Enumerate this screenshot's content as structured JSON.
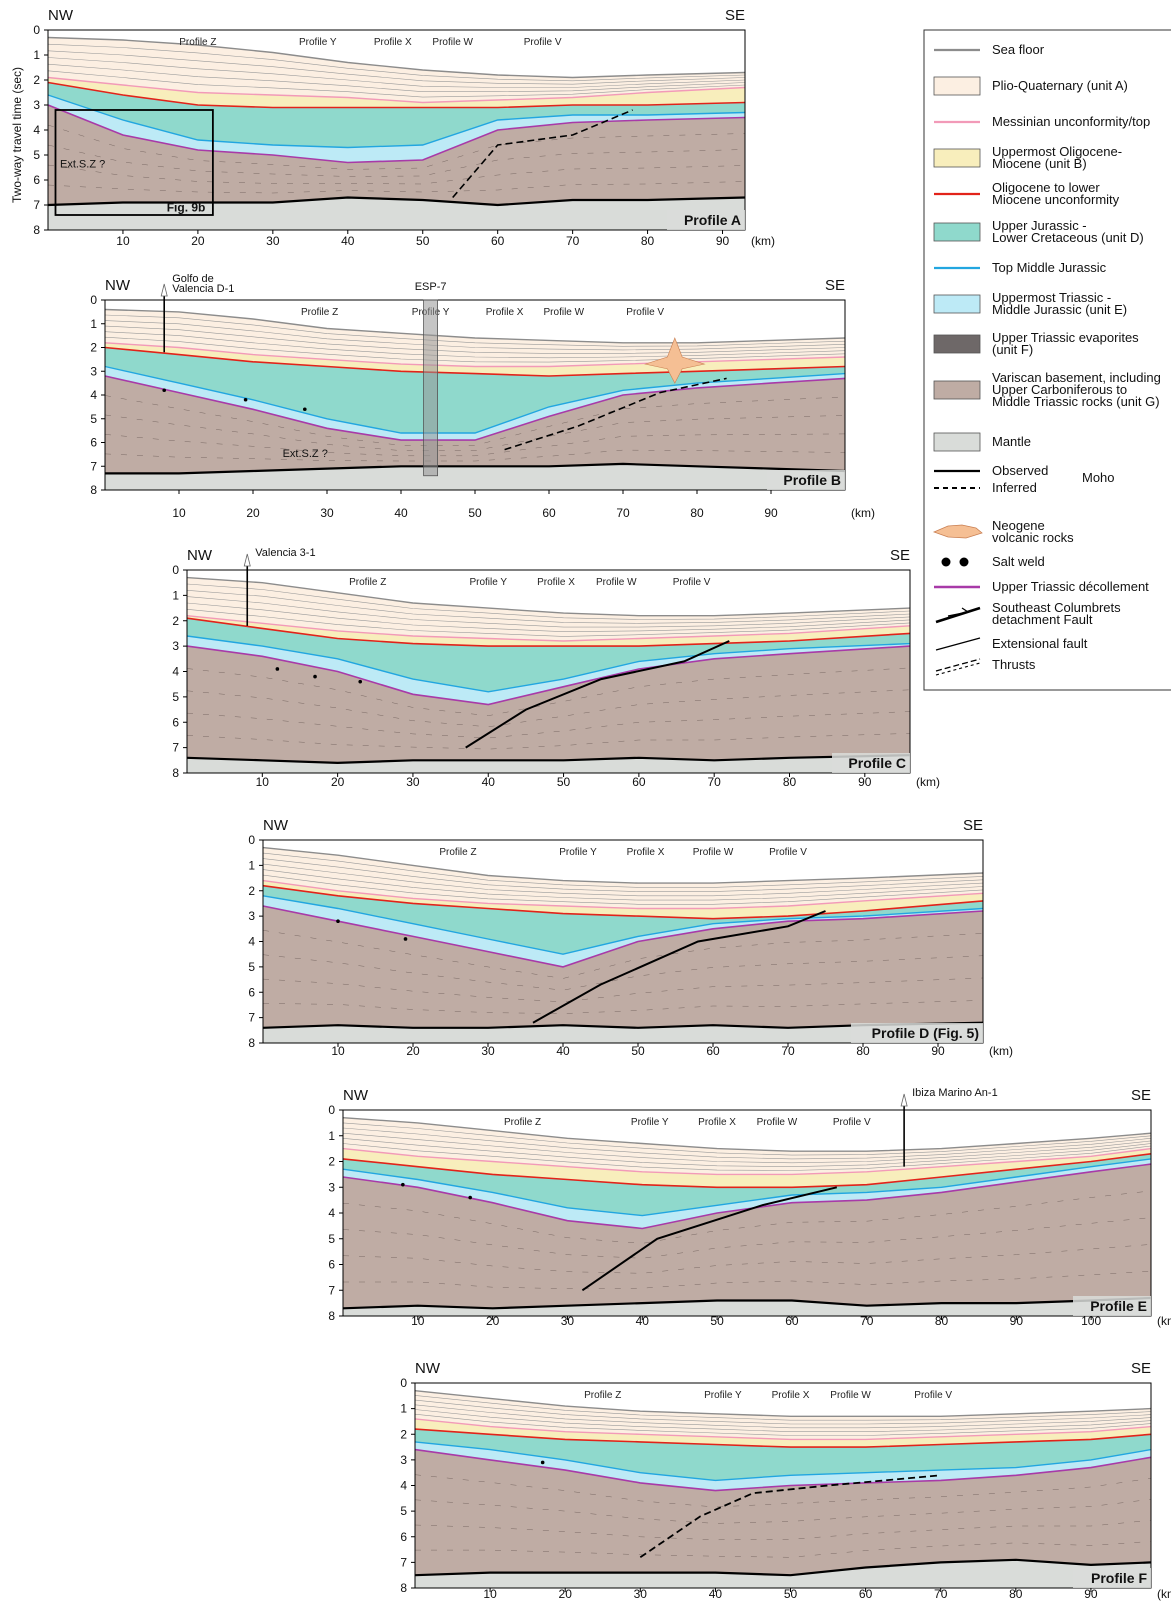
{
  "y_axis_label": "Two-way travel time (sec)",
  "colors": {
    "sea_floor": "#8c8c8c",
    "unit_A": "#fcefe2",
    "unit_B": "#f8eebc",
    "unit_D": "#8fd9cc",
    "unit_E": "#bdeaf6",
    "unit_F": "#6e6868",
    "unit_G": "#bfaca4",
    "mantle": "#d9dcd9",
    "messinian": "#f29ab8",
    "oligocene_unconf": "#e2231a",
    "top_mid_jurassic": "#22a6e0",
    "decollement": "#a83aa8",
    "volcanic": "#f5bf94"
  },
  "legend": [
    {
      "type": "line",
      "style": "sea_floor",
      "text": "Sea floor"
    },
    {
      "type": "box",
      "style": "unit_A",
      "text": "Plio-Quaternary (unit A)"
    },
    {
      "type": "line",
      "style": "messinian",
      "text": "Messinian unconformity/top"
    },
    {
      "type": "box",
      "style": "unit_B",
      "text": "Uppermost Oligocene-|Miocene (unit B)"
    },
    {
      "type": "line",
      "style": "oligocene_unconf",
      "text": "Oligocene to lower|Miocene unconformity"
    },
    {
      "type": "box",
      "style": "unit_D",
      "text": "Upper Jurassic -|Lower Cretaceous (unit D)"
    },
    {
      "type": "line",
      "style": "top_mid_jurassic",
      "text": "Top Middle Jurassic"
    },
    {
      "type": "box",
      "style": "unit_E",
      "text": "Uppermost Triassic -|Middle Jurassic (unit E)"
    },
    {
      "type": "box",
      "style": "unit_F",
      "text": "Upper Triassic evaporites|(unit F)"
    },
    {
      "type": "box",
      "style": "unit_G",
      "text": "Variscan basement, including|Upper Carboniferous to|Middle Triassic rocks (unit G)"
    },
    {
      "type": "box",
      "style": "mantle",
      "text": "Mantle"
    }
  ],
  "legend_moho": {
    "observed": "Observed",
    "inferred": "Inferred",
    "label": "Moho"
  },
  "legend_symbols": [
    {
      "type": "volcanic",
      "text": "Neogene|volcanic rocks"
    },
    {
      "type": "saltweld",
      "text": "Salt weld"
    },
    {
      "type": "decollement",
      "text": "Upper Triassic décollement"
    },
    {
      "type": "detachment",
      "text": "Southeast Columbrets|detachment Fault"
    },
    {
      "type": "extensional",
      "text": "Extensional fault"
    },
    {
      "type": "thrust",
      "text": "Thrusts"
    }
  ],
  "profiles": [
    {
      "id": "A",
      "title": "Profile A",
      "nw": "NW",
      "se": "SE",
      "x_ticks": [
        "10",
        "20",
        "30",
        "40",
        "50",
        "60",
        "70",
        "80",
        "90"
      ],
      "x_max": 93,
      "x_unit": "(km)",
      "y_ticks": [
        "0",
        "1",
        "2",
        "3",
        "4",
        "5",
        "6",
        "7",
        "8"
      ],
      "crossing_profiles": [
        {
          "name": "Profile Z",
          "km": 20
        },
        {
          "name": "Profile Y",
          "km": 36
        },
        {
          "name": "Profile X",
          "km": 46
        },
        {
          "name": "Profile W",
          "km": 54
        },
        {
          "name": "Profile V",
          "km": 66
        }
      ],
      "annotations": [
        "Ext.S.Z ?",
        "Fig. 9b"
      ],
      "wells": [],
      "depth_surfaces": {
        "km": [
          0,
          10,
          20,
          30,
          40,
          50,
          60,
          70,
          80,
          93
        ],
        "sea_floor": [
          0.3,
          0.4,
          0.6,
          0.9,
          1.3,
          1.6,
          1.8,
          1.9,
          1.8,
          1.7
        ],
        "messinian": [
          1.9,
          2.2,
          2.5,
          2.6,
          2.7,
          2.9,
          2.8,
          2.7,
          2.5,
          2.3
        ],
        "oligocene": [
          2.1,
          2.6,
          3.0,
          3.1,
          3.1,
          3.1,
          3.1,
          3.0,
          3.0,
          2.9
        ],
        "top_mid_jurassic": [
          2.6,
          3.6,
          4.4,
          4.6,
          4.7,
          4.6,
          3.6,
          3.4,
          3.4,
          3.3
        ],
        "decollement": [
          3.0,
          4.2,
          4.8,
          5.0,
          5.3,
          5.2,
          4.0,
          3.7,
          3.6,
          3.5
        ],
        "moho": [
          7.0,
          6.9,
          6.9,
          6.9,
          6.7,
          6.8,
          7.0,
          6.8,
          6.8,
          6.7
        ]
      }
    },
    {
      "id": "B",
      "title": "Profile B",
      "nw": "NW",
      "se": "SE",
      "x_ticks": [
        "10",
        "20",
        "30",
        "40",
        "50",
        "60",
        "70",
        "80",
        "90"
      ],
      "x_max": 100,
      "x_unit": "(km)",
      "y_ticks": [
        "0",
        "1",
        "2",
        "3",
        "4",
        "5",
        "6",
        "7",
        "8"
      ],
      "crossing_profiles": [
        {
          "name": "Profile Z",
          "km": 29
        },
        {
          "name": "Profile Y",
          "km": 44
        },
        {
          "name": "Profile X",
          "km": 54
        },
        {
          "name": "Profile W",
          "km": 62
        },
        {
          "name": "Profile V",
          "km": 73
        }
      ],
      "annotations": [
        "Ext.S.Z ?",
        "ESP-7"
      ],
      "wells": [
        {
          "name": "Golfo de|Valencia D-1",
          "km": 8
        }
      ],
      "depth_surfaces": {
        "km": [
          0,
          10,
          20,
          30,
          40,
          50,
          60,
          70,
          80,
          90,
          100
        ],
        "sea_floor": [
          0.4,
          0.5,
          0.8,
          1.2,
          1.4,
          1.6,
          1.7,
          1.8,
          1.8,
          1.7,
          1.6
        ],
        "messinian": [
          1.8,
          2.0,
          2.3,
          2.5,
          2.7,
          2.8,
          2.8,
          2.7,
          2.6,
          2.5,
          2.4
        ],
        "oligocene": [
          2.0,
          2.3,
          2.6,
          2.8,
          3.0,
          3.1,
          3.2,
          3.1,
          3.0,
          2.9,
          2.8
        ],
        "top_mid_jurassic": [
          2.8,
          3.5,
          4.2,
          5.0,
          5.6,
          5.6,
          4.5,
          3.8,
          3.5,
          3.3,
          3.1
        ],
        "decollement": [
          3.2,
          3.9,
          4.6,
          5.4,
          5.9,
          5.9,
          4.9,
          4.0,
          3.7,
          3.5,
          3.3
        ],
        "moho": [
          7.3,
          7.3,
          7.2,
          7.1,
          7.0,
          7.0,
          7.0,
          6.9,
          7.0,
          7.1,
          7.2
        ]
      }
    },
    {
      "id": "C",
      "title": "Profile C",
      "nw": "NW",
      "se": "SE",
      "x_ticks": [
        "10",
        "20",
        "30",
        "40",
        "50",
        "60",
        "70",
        "80",
        "90"
      ],
      "x_max": 96,
      "x_unit": "(km)",
      "y_ticks": [
        "0",
        "1",
        "2",
        "3",
        "4",
        "5",
        "6",
        "7",
        "8"
      ],
      "crossing_profiles": [
        {
          "name": "Profile Z",
          "km": 24
        },
        {
          "name": "Profile Y",
          "km": 40
        },
        {
          "name": "Profile X",
          "km": 49
        },
        {
          "name": "Profile W",
          "km": 57
        },
        {
          "name": "Profile V",
          "km": 67
        }
      ],
      "annotations": [],
      "wells": [
        {
          "name": "Valencia 3-1",
          "km": 8
        }
      ],
      "depth_surfaces": {
        "km": [
          0,
          10,
          20,
          30,
          40,
          50,
          60,
          70,
          80,
          96
        ],
        "sea_floor": [
          0.3,
          0.5,
          0.9,
          1.3,
          1.5,
          1.7,
          1.8,
          1.8,
          1.7,
          1.5
        ],
        "messinian": [
          1.8,
          2.1,
          2.4,
          2.6,
          2.7,
          2.8,
          2.7,
          2.6,
          2.5,
          2.2
        ],
        "oligocene": [
          1.9,
          2.3,
          2.7,
          2.9,
          3.0,
          3.0,
          3.0,
          2.9,
          2.8,
          2.5
        ],
        "top_mid_jurassic": [
          2.6,
          3.0,
          3.5,
          4.3,
          4.8,
          4.3,
          3.6,
          3.3,
          3.1,
          2.9
        ],
        "decollement": [
          3.0,
          3.4,
          4.0,
          4.9,
          5.3,
          4.6,
          3.9,
          3.5,
          3.3,
          3.0
        ],
        "moho": [
          7.4,
          7.5,
          7.6,
          7.5,
          7.5,
          7.5,
          7.4,
          7.5,
          7.4,
          7.3
        ]
      }
    },
    {
      "id": "D",
      "title": "Profile D (Fig. 5)",
      "nw": "NW",
      "se": "SE",
      "x_ticks": [
        "10",
        "20",
        "30",
        "40",
        "50",
        "60",
        "70",
        "80",
        "90"
      ],
      "x_max": 96,
      "x_unit": "(km)",
      "y_ticks": [
        "0",
        "1",
        "2",
        "3",
        "4",
        "5",
        "6",
        "7",
        "8"
      ],
      "crossing_profiles": [
        {
          "name": "Profile Z",
          "km": 26
        },
        {
          "name": "Profile Y",
          "km": 42
        },
        {
          "name": "Profile X",
          "km": 51
        },
        {
          "name": "Profile W",
          "km": 60
        },
        {
          "name": "Profile V",
          "km": 70
        }
      ],
      "annotations": [],
      "wells": [],
      "depth_surfaces": {
        "km": [
          0,
          10,
          20,
          30,
          40,
          50,
          60,
          70,
          80,
          96
        ],
        "sea_floor": [
          0.3,
          0.6,
          1.0,
          1.4,
          1.6,
          1.7,
          1.7,
          1.6,
          1.5,
          1.3
        ],
        "messinian": [
          1.6,
          2.0,
          2.3,
          2.5,
          2.6,
          2.7,
          2.7,
          2.6,
          2.4,
          2.1
        ],
        "oligocene": [
          1.8,
          2.2,
          2.5,
          2.7,
          2.9,
          3.0,
          3.1,
          3.0,
          2.8,
          2.4
        ],
        "top_mid_jurassic": [
          2.2,
          2.7,
          3.3,
          3.9,
          4.5,
          3.8,
          3.3,
          3.1,
          3.0,
          2.7
        ],
        "decollement": [
          2.6,
          3.2,
          3.8,
          4.4,
          5.0,
          4.0,
          3.5,
          3.2,
          3.1,
          2.8
        ],
        "moho": [
          7.4,
          7.3,
          7.4,
          7.4,
          7.3,
          7.4,
          7.3,
          7.4,
          7.3,
          7.2
        ]
      }
    },
    {
      "id": "E",
      "title": "Profile E",
      "nw": "NW",
      "se": "SE",
      "x_ticks": [
        "10",
        "20",
        "30",
        "40",
        "50",
        "60",
        "70",
        "80",
        "90",
        "100"
      ],
      "x_max": 108,
      "x_unit": "(km)",
      "y_ticks": [
        "0",
        "1",
        "2",
        "3",
        "4",
        "5",
        "6",
        "7",
        "8"
      ],
      "crossing_profiles": [
        {
          "name": "Profile Z",
          "km": 24
        },
        {
          "name": "Profile Y",
          "km": 41
        },
        {
          "name": "Profile X",
          "km": 50
        },
        {
          "name": "Profile W",
          "km": 58
        },
        {
          "name": "Profile V",
          "km": 68
        }
      ],
      "annotations": [],
      "wells": [
        {
          "name": "Ibiza Marino An-1",
          "km": 75
        }
      ],
      "depth_surfaces": {
        "km": [
          0,
          10,
          20,
          30,
          40,
          50,
          60,
          70,
          80,
          90,
          100,
          108
        ],
        "sea_floor": [
          0.3,
          0.5,
          0.8,
          1.1,
          1.3,
          1.5,
          1.6,
          1.6,
          1.5,
          1.3,
          1.1,
          0.9
        ],
        "messinian": [
          1.5,
          1.8,
          2.0,
          2.2,
          2.4,
          2.5,
          2.5,
          2.4,
          2.2,
          2.0,
          1.8,
          1.5
        ],
        "oligocene": [
          1.9,
          2.2,
          2.5,
          2.7,
          2.9,
          3.0,
          3.0,
          2.9,
          2.6,
          2.3,
          2.0,
          1.7
        ],
        "top_mid_jurassic": [
          2.3,
          2.7,
          3.2,
          3.8,
          4.1,
          3.7,
          3.3,
          3.2,
          3.0,
          2.6,
          2.2,
          1.9
        ],
        "decollement": [
          2.6,
          3.0,
          3.6,
          4.3,
          4.6,
          4.0,
          3.6,
          3.5,
          3.2,
          2.8,
          2.4,
          2.1
        ],
        "moho": [
          7.7,
          7.6,
          7.7,
          7.6,
          7.5,
          7.4,
          7.4,
          7.6,
          7.5,
          7.5,
          7.4,
          7.3
        ]
      }
    },
    {
      "id": "F",
      "title": "Profile F",
      "nw": "NW",
      "se": "SE",
      "x_ticks": [
        "10",
        "20",
        "30",
        "40",
        "50",
        "60",
        "70",
        "80",
        "90"
      ],
      "x_max": 98,
      "x_unit": "(km)",
      "y_ticks": [
        "0",
        "1",
        "2",
        "3",
        "4",
        "5",
        "6",
        "7",
        "8"
      ],
      "crossing_profiles": [
        {
          "name": "Profile Z",
          "km": 25
        },
        {
          "name": "Profile Y",
          "km": 41
        },
        {
          "name": "Profile X",
          "km": 50
        },
        {
          "name": "Profile W",
          "km": 58
        },
        {
          "name": "Profile V",
          "km": 69
        }
      ],
      "annotations": [],
      "wells": [],
      "depth_surfaces": {
        "km": [
          0,
          10,
          20,
          30,
          40,
          50,
          60,
          70,
          80,
          90,
          98
        ],
        "sea_floor": [
          0.3,
          0.6,
          0.9,
          1.1,
          1.2,
          1.3,
          1.3,
          1.3,
          1.2,
          1.1,
          1.0
        ],
        "messinian": [
          1.4,
          1.7,
          1.9,
          2.0,
          2.1,
          2.2,
          2.2,
          2.1,
          2.0,
          1.9,
          1.7
        ],
        "oligocene": [
          1.8,
          2.0,
          2.2,
          2.3,
          2.4,
          2.5,
          2.5,
          2.4,
          2.3,
          2.2,
          2.0
        ],
        "top_mid_jurassic": [
          2.3,
          2.6,
          3.0,
          3.5,
          3.8,
          3.6,
          3.5,
          3.4,
          3.3,
          3.0,
          2.6
        ],
        "decollement": [
          2.6,
          3.0,
          3.4,
          3.9,
          4.2,
          4.0,
          3.9,
          3.8,
          3.6,
          3.3,
          2.9
        ],
        "moho": [
          7.5,
          7.4,
          7.4,
          7.4,
          7.4,
          7.5,
          7.2,
          7.0,
          6.9,
          7.1,
          7.0
        ]
      }
    }
  ]
}
